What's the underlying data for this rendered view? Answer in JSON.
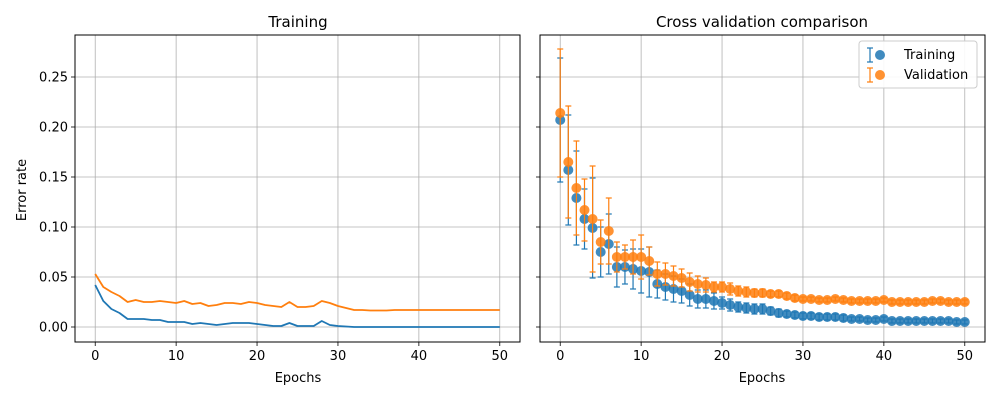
{
  "colors": {
    "training": "#1f77b4",
    "validation": "#ff7f0e",
    "grid": "#b0b0b0"
  },
  "chart_data": [
    {
      "type": "line",
      "title": "Training",
      "xlabel": "Epochs",
      "ylabel": "Error rate",
      "xlim": [
        -2.5,
        52.5
      ],
      "ylim": [
        -0.015,
        0.292
      ],
      "xticks": [
        0,
        10,
        20,
        30,
        40,
        50
      ],
      "yticks": [
        0.0,
        0.05,
        0.1,
        0.15,
        0.2,
        0.25
      ],
      "ytick_labels": [
        "0.00",
        "0.05",
        "0.10",
        "0.15",
        "0.20",
        "0.25"
      ],
      "grid": true,
      "x": [
        0,
        1,
        2,
        3,
        4,
        5,
        6,
        7,
        8,
        9,
        10,
        11,
        12,
        13,
        14,
        15,
        16,
        17,
        18,
        19,
        20,
        21,
        22,
        23,
        24,
        25,
        26,
        27,
        28,
        29,
        30,
        31,
        32,
        33,
        34,
        35,
        36,
        37,
        38,
        39,
        40,
        41,
        42,
        43,
        44,
        45,
        46,
        47,
        48,
        49,
        50
      ],
      "series": [
        {
          "color": "training",
          "values": [
            0.042,
            0.026,
            0.018,
            0.014,
            0.008,
            0.008,
            0.008,
            0.007,
            0.007,
            0.005,
            0.005,
            0.005,
            0.003,
            0.004,
            0.003,
            0.002,
            0.003,
            0.004,
            0.004,
            0.004,
            0.003,
            0.002,
            0.001,
            0.001,
            0.004,
            0.001,
            0.001,
            0.001,
            0.006,
            0.002,
            0.001,
            0.0005,
            0.0,
            0.0,
            0.0,
            0.0,
            0.0,
            0.0,
            0.0,
            0.0,
            0.0,
            0.0,
            0.0,
            0.0,
            0.0,
            0.0,
            0.0,
            0.0,
            0.0,
            0.0,
            0.0
          ]
        },
        {
          "color": "validation",
          "values": [
            0.053,
            0.04,
            0.035,
            0.031,
            0.025,
            0.027,
            0.025,
            0.025,
            0.026,
            0.025,
            0.024,
            0.026,
            0.023,
            0.024,
            0.021,
            0.022,
            0.024,
            0.024,
            0.023,
            0.025,
            0.024,
            0.022,
            0.021,
            0.02,
            0.025,
            0.02,
            0.02,
            0.021,
            0.026,
            0.024,
            0.021,
            0.019,
            0.017,
            0.017,
            0.0165,
            0.0165,
            0.0165,
            0.017,
            0.017,
            0.017,
            0.017,
            0.017,
            0.017,
            0.017,
            0.017,
            0.017,
            0.017,
            0.017,
            0.017,
            0.017,
            0.017
          ]
        }
      ]
    },
    {
      "type": "scatter",
      "title": "Cross validation comparison",
      "xlabel": "Epochs",
      "xlim": [
        -2.5,
        52.5
      ],
      "ylim": [
        -0.015,
        0.292
      ],
      "xticks": [
        0,
        10,
        20,
        30,
        40,
        50
      ],
      "yticks": [
        0.0,
        0.05,
        0.1,
        0.15,
        0.2,
        0.25
      ],
      "grid": true,
      "legend_position": "top-right",
      "x": [
        0,
        1,
        2,
        3,
        4,
        5,
        6,
        7,
        8,
        9,
        10,
        11,
        12,
        13,
        14,
        15,
        16,
        17,
        18,
        19,
        20,
        21,
        22,
        23,
        24,
        25,
        26,
        27,
        28,
        29,
        30,
        31,
        32,
        33,
        34,
        35,
        36,
        37,
        38,
        39,
        40,
        41,
        42,
        43,
        44,
        45,
        46,
        47,
        48,
        49,
        50
      ],
      "series": [
        {
          "name": "Training",
          "color": "training",
          "values": [
            0.207,
            0.157,
            0.129,
            0.108,
            0.099,
            0.075,
            0.083,
            0.06,
            0.06,
            0.058,
            0.056,
            0.055,
            0.043,
            0.04,
            0.038,
            0.036,
            0.032,
            0.028,
            0.028,
            0.026,
            0.024,
            0.022,
            0.02,
            0.019,
            0.018,
            0.018,
            0.016,
            0.014,
            0.013,
            0.012,
            0.011,
            0.011,
            0.01,
            0.01,
            0.01,
            0.009,
            0.008,
            0.008,
            0.007,
            0.007,
            0.008,
            0.006,
            0.006,
            0.006,
            0.006,
            0.006,
            0.006,
            0.006,
            0.006,
            0.005,
            0.005
          ],
          "error": [
            0.062,
            0.055,
            0.047,
            0.03,
            0.05,
            0.025,
            0.03,
            0.02,
            0.017,
            0.02,
            0.022,
            0.025,
            0.014,
            0.013,
            0.013,
            0.012,
            0.011,
            0.009,
            0.009,
            0.008,
            0.006,
            0.006,
            0.005,
            0.005,
            0.005,
            0.005,
            0.004,
            0.004,
            0.003,
            0.003,
            0.003,
            0.003,
            0.003,
            0.003,
            0.003,
            0.003,
            0.002,
            0.002,
            0.002,
            0.002,
            0.002,
            0.002,
            0.002,
            0.002,
            0.002,
            0.002,
            0.002,
            0.002,
            0.002,
            0.002,
            0.002
          ]
        },
        {
          "name": "Validation",
          "color": "validation",
          "values": [
            0.214,
            0.165,
            0.139,
            0.117,
            0.108,
            0.085,
            0.096,
            0.07,
            0.07,
            0.07,
            0.07,
            0.066,
            0.053,
            0.053,
            0.051,
            0.049,
            0.045,
            0.043,
            0.042,
            0.04,
            0.04,
            0.038,
            0.036,
            0.035,
            0.034,
            0.034,
            0.033,
            0.033,
            0.031,
            0.029,
            0.028,
            0.028,
            0.027,
            0.027,
            0.028,
            0.027,
            0.026,
            0.026,
            0.026,
            0.026,
            0.027,
            0.025,
            0.025,
            0.025,
            0.025,
            0.025,
            0.026,
            0.026,
            0.025,
            0.025,
            0.025
          ],
          "error": [
            0.064,
            0.056,
            0.047,
            0.031,
            0.053,
            0.022,
            0.033,
            0.015,
            0.012,
            0.017,
            0.022,
            0.014,
            0.012,
            0.011,
            0.01,
            0.009,
            0.009,
            0.008,
            0.007,
            0.005,
            0.005,
            0.006,
            0.005,
            0.005,
            0.004,
            0.004,
            0.003,
            0.003,
            0.003,
            0.003,
            0.002,
            0.002,
            0.002,
            0.002,
            0.002,
            0.002,
            0.002,
            0.002,
            0.002,
            0.002,
            0.002,
            0.002,
            0.002,
            0.002,
            0.002,
            0.002,
            0.002,
            0.002,
            0.002,
            0.002,
            0.002
          ]
        }
      ]
    }
  ]
}
